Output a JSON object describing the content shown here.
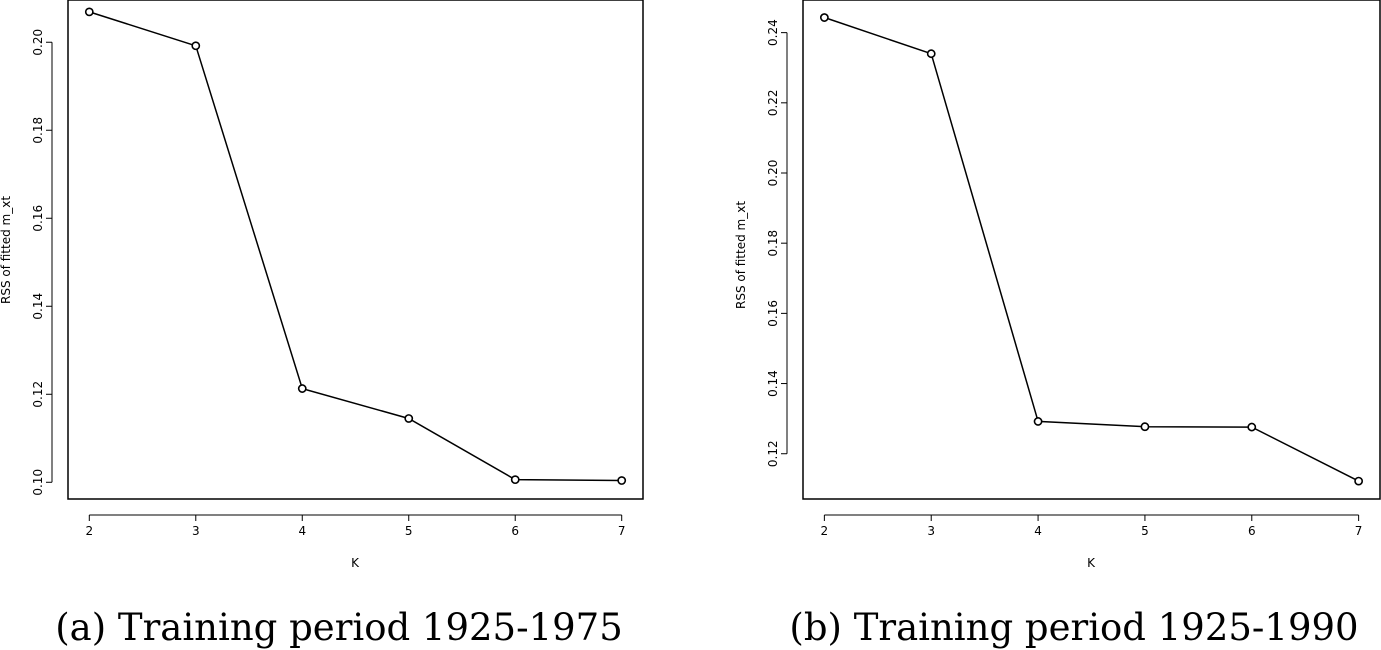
{
  "chart_data": [
    {
      "type": "line",
      "caption": "(a) Training period 1925-1975",
      "xlabel": "K",
      "ylabel": "RSS of fitted m_xt",
      "x": [
        2,
        3,
        4,
        5,
        6,
        7
      ],
      "values": [
        0.2069,
        0.1992,
        0.1213,
        0.1145,
        0.1006,
        0.1004
      ],
      "xticks": [
        "2",
        "3",
        "4",
        "5",
        "6",
        "7"
      ],
      "yticks": [
        "0.10",
        "0.12",
        "0.14",
        "0.16",
        "0.18",
        "0.20"
      ],
      "xlim": [
        1.8,
        7.2
      ],
      "ylim": [
        0.0962,
        0.2096
      ],
      "markers": "open-circle",
      "grid": false,
      "line_color": "#000000"
    },
    {
      "type": "line",
      "caption": "(b) Training period 1925-1990",
      "xlabel": "K",
      "ylabel": "RSS of fitted m_xt",
      "x": [
        2,
        3,
        4,
        5,
        6,
        7
      ],
      "values": [
        0.2443,
        0.234,
        0.1292,
        0.1277,
        0.1276,
        0.1122
      ],
      "xticks": [
        "2",
        "3",
        "4",
        "5",
        "6",
        "7"
      ],
      "yticks": [
        "0.12",
        "0.14",
        "0.16",
        "0.18",
        "0.20",
        "0.22",
        "0.24"
      ],
      "xlim": [
        1.8,
        7.2
      ],
      "ylim": [
        0.1071,
        0.2493
      ],
      "markers": "open-circle",
      "grid": false,
      "line_color": "#000000"
    }
  ]
}
